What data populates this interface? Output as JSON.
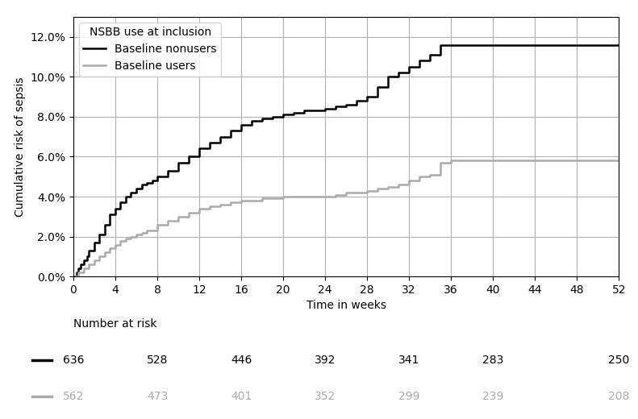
{
  "chart_data": {
    "type": "step",
    "ylabel": "Cumulative risk of sepsis",
    "xlabel": "Time in weeks",
    "xlim": [
      0,
      52
    ],
    "ylim": [
      0,
      0.13
    ],
    "xticks": [
      0,
      4,
      8,
      12,
      16,
      20,
      24,
      28,
      32,
      36,
      40,
      44,
      48,
      52
    ],
    "yticks": [
      {
        "value": 0.0,
        "label": "0.0%"
      },
      {
        "value": 0.02,
        "label": "2.0%"
      },
      {
        "value": 0.04,
        "label": "4.0%"
      },
      {
        "value": 0.06,
        "label": "6.0%"
      },
      {
        "value": 0.08,
        "label": "8.0%"
      },
      {
        "value": 0.1,
        "label": "10.0%"
      },
      {
        "value": 0.12,
        "label": "12.0%"
      }
    ],
    "grid": true,
    "legend": "upper left",
    "legend_title": "NSBB use at inclusion",
    "risk_label": "Number at risk",
    "risk_times": [
      0,
      8,
      16,
      24,
      32,
      40,
      52
    ],
    "series": [
      {
        "name": "Baseline nonusers",
        "color": "#000000",
        "x": [
          0,
          0.3,
          0.5,
          0.7,
          1.0,
          1.3,
          1.5,
          2.0,
          2.5,
          3.0,
          3.5,
          4.0,
          4.5,
          5.0,
          5.5,
          6.0,
          6.5,
          7.0,
          7.5,
          8.0,
          9.0,
          10.0,
          11.0,
          12.0,
          13.0,
          14.0,
          15.0,
          16.0,
          17.0,
          18.0,
          19.0,
          20.0,
          21.0,
          22.0,
          23.0,
          24.0,
          25.0,
          26.0,
          27.0,
          28.0,
          29.0,
          30.0,
          31.0,
          32.0,
          33.0,
          34.0,
          35.0,
          36.0,
          40.0,
          44.0,
          48.0,
          52.0
        ],
        "values": [
          0.0,
          0.002,
          0.004,
          0.006,
          0.008,
          0.01,
          0.013,
          0.017,
          0.021,
          0.026,
          0.031,
          0.034,
          0.037,
          0.04,
          0.042,
          0.044,
          0.046,
          0.047,
          0.048,
          0.05,
          0.053,
          0.057,
          0.06,
          0.064,
          0.067,
          0.07,
          0.073,
          0.076,
          0.078,
          0.079,
          0.08,
          0.081,
          0.082,
          0.083,
          0.083,
          0.084,
          0.085,
          0.086,
          0.088,
          0.09,
          0.095,
          0.1,
          0.102,
          0.105,
          0.108,
          0.111,
          0.116,
          0.116,
          0.116,
          0.116,
          0.116,
          0.116
        ],
        "at_risk": [
          636,
          528,
          446,
          392,
          341,
          283,
          250
        ]
      },
      {
        "name": "Baseline users",
        "color": "#aaaaaa",
        "x": [
          0,
          0.5,
          1.0,
          1.5,
          2.0,
          2.5,
          3.0,
          3.5,
          4.0,
          4.5,
          5.0,
          5.5,
          6.0,
          6.5,
          7.0,
          8.0,
          9.0,
          10.0,
          11.0,
          12.0,
          13.0,
          14.0,
          15.0,
          16.0,
          17.0,
          18.0,
          19.0,
          20.0,
          24.0,
          25.0,
          26.0,
          27.0,
          28.0,
          29.0,
          30.0,
          31.0,
          32.0,
          33.0,
          34.0,
          35.0,
          36.0,
          40.0,
          44.0,
          48.0,
          52.0
        ],
        "values": [
          0.0,
          0.002,
          0.004,
          0.006,
          0.008,
          0.01,
          0.012,
          0.014,
          0.016,
          0.018,
          0.019,
          0.02,
          0.021,
          0.022,
          0.023,
          0.026,
          0.028,
          0.03,
          0.032,
          0.034,
          0.035,
          0.036,
          0.037,
          0.038,
          0.038,
          0.039,
          0.039,
          0.04,
          0.04,
          0.041,
          0.042,
          0.042,
          0.043,
          0.044,
          0.045,
          0.046,
          0.048,
          0.05,
          0.051,
          0.057,
          0.058,
          0.058,
          0.058,
          0.058,
          0.058
        ],
        "at_risk": [
          562,
          473,
          401,
          352,
          299,
          239,
          208
        ]
      }
    ]
  }
}
